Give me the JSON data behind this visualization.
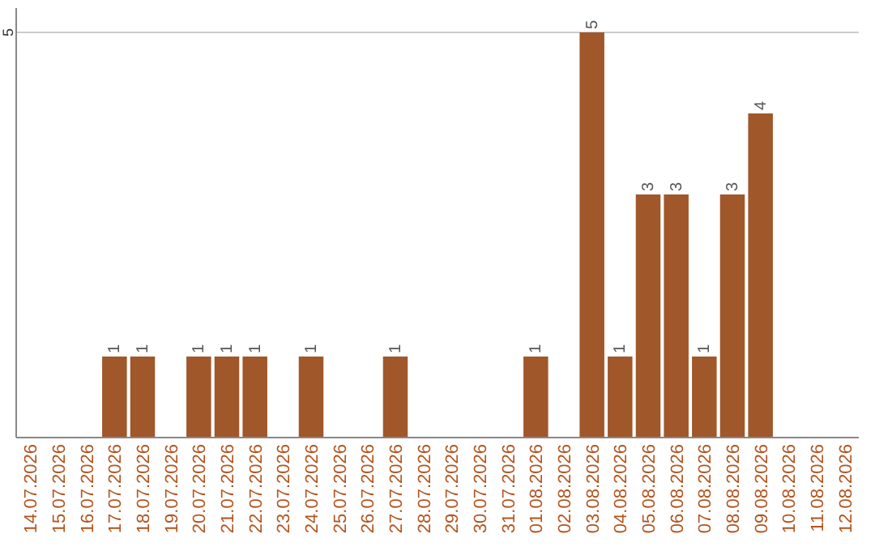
{
  "chart_data": {
    "type": "bar",
    "categories": [
      "14.07.2026",
      "15.07.2026",
      "16.07.2026",
      "17.07.2026",
      "18.07.2026",
      "19.07.2026",
      "20.07.2026",
      "21.07.2026",
      "22.07.2026",
      "23.07.2026",
      "24.07.2026",
      "25.07.2026",
      "26.07.2026",
      "27.07.2026",
      "28.07.2026",
      "29.07.2026",
      "30.07.2026",
      "31.07.2026",
      "01.08.2026",
      "02.08.2026",
      "03.08.2026",
      "04.08.2026",
      "05.08.2026",
      "06.08.2026",
      "07.08.2026",
      "08.08.2026",
      "09.08.2026",
      "10.08.2026",
      "11.08.2026",
      "12.08.2026"
    ],
    "values": [
      0,
      0,
      0,
      1,
      1,
      0,
      1,
      1,
      1,
      0,
      1,
      0,
      0,
      1,
      0,
      0,
      0,
      0,
      1,
      0,
      5,
      1,
      3,
      3,
      1,
      3,
      4,
      0,
      0,
      0
    ],
    "value_labels": [
      null,
      null,
      null,
      "1",
      "1",
      null,
      "1",
      "1",
      "1",
      null,
      "1",
      null,
      null,
      "1",
      null,
      null,
      null,
      null,
      "1",
      null,
      "5",
      "1",
      "3",
      "3",
      "1",
      "3",
      "4",
      null,
      null,
      null
    ],
    "color": "#a0572a",
    "ylim": [
      0,
      5.3
    ],
    "yticks": [
      5
    ],
    "grid": "y"
  }
}
